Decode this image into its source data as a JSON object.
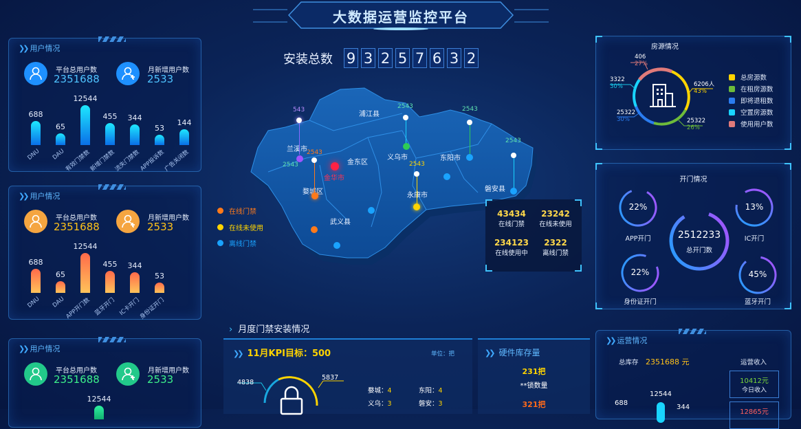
{
  "header": {
    "title": "大数据运营监控平台",
    "install_label": "安装总数",
    "install_digits": [
      "9",
      "3",
      "2",
      "5",
      "7",
      "6",
      "3",
      "2"
    ]
  },
  "user_panels": [
    {
      "title": "用户情况",
      "total_label": "平台总用户数",
      "total_value": "2351688",
      "new_label": "月新增用户数",
      "new_value": "2533",
      "accent": "#1e90ff",
      "value_color": "#4fc3ff",
      "bars": [
        {
          "label": "DNU",
          "value": 688
        },
        {
          "label": "DAU",
          "value": 65
        },
        {
          "label": "有效门禁数",
          "value": 12544
        },
        {
          "label": "新增门禁数",
          "value": 455
        },
        {
          "label": "流失门禁数",
          "value": 344
        },
        {
          "label": "APP投诉数",
          "value": 53
        },
        {
          "label": "广告关闭数",
          "value": 144
        }
      ]
    },
    {
      "title": "用户情况",
      "total_label": "平台总用户数",
      "total_value": "2351688",
      "new_label": "月新增用户数",
      "new_value": "2533",
      "accent": "#f5a540",
      "value_color": "#ffc21a",
      "bars": [
        {
          "label": "DNU",
          "value": 688
        },
        {
          "label": "DAU",
          "value": 65
        },
        {
          "label": "APP开门数",
          "value": 12544
        },
        {
          "label": "蓝牙开门",
          "value": 455
        },
        {
          "label": "IC卡开门",
          "value": 344
        },
        {
          "label": "身份证开门",
          "value": 53
        }
      ]
    },
    {
      "title": "用户情况",
      "total_label": "平台总用户数",
      "total_value": "2351688",
      "new_label": "月新增用户数",
      "new_value": "2533",
      "accent": "#22c98a",
      "value_color": "#3cf08a",
      "bars": [
        {
          "label": "",
          "value": 12544
        }
      ]
    }
  ],
  "map": {
    "regions": [
      "浦江县",
      "兰溪市",
      "金东区",
      "金华市",
      "婺城区",
      "义乌市",
      "东阳市",
      "永康市",
      "武义县",
      "磐安县"
    ],
    "pins": [
      {
        "value": "543",
        "color": "#b98cff"
      },
      {
        "value": "2543",
        "color": "#ff7a1a"
      },
      {
        "value": "2543",
        "color": "#5fe3b0"
      },
      {
        "value": "2543",
        "color": "#5fe3b0"
      },
      {
        "value": "2543",
        "color": "#5fe3b0"
      },
      {
        "value": "2543",
        "color": "#ffd400"
      },
      {
        "value": "2543",
        "color": "#5fe3b0"
      }
    ],
    "legend": [
      {
        "label": "在线门禁",
        "color": "#ff7a1a"
      },
      {
        "label": "在线未使用",
        "color": "#ffd400"
      },
      {
        "label": "离线门禁",
        "color": "#1aa3ff"
      }
    ],
    "stats": [
      {
        "value": "43434",
        "label": "在线门禁"
      },
      {
        "value": "23242",
        "label": "在线未使用"
      },
      {
        "value": "234123",
        "label": "在线使用中"
      },
      {
        "value": "2322",
        "label": "离线门禁"
      }
    ]
  },
  "housing": {
    "title": "房源情况",
    "callouts": [
      {
        "value": "406",
        "pct": "27%",
        "color": "#e07a7a"
      },
      {
        "value": "3322",
        "pct": "30%",
        "color": "#19c6e6"
      },
      {
        "value": "25322",
        "pct": "30%",
        "color": "#2a7cf0"
      },
      {
        "value": "6206人",
        "pct": "43%",
        "color": "#ffd400"
      },
      {
        "value": "25322",
        "pct": "26%",
        "color": "#6dbb3a"
      }
    ],
    "legend": [
      {
        "label": "总房源数",
        "color": "#ffd400"
      },
      {
        "label": "在租房源数",
        "color": "#6dbb3a"
      },
      {
        "label": "即将退租数",
        "color": "#2a7cf0"
      },
      {
        "label": "空置房源数",
        "color": "#19d4ff"
      },
      {
        "label": "使用用户数",
        "color": "#e07a7a"
      }
    ]
  },
  "door": {
    "title": "开门情况",
    "total_value": "2512233",
    "total_label": "总开门数",
    "rings": [
      {
        "pct": "22%",
        "label": "APP开门",
        "fraction": 0.22
      },
      {
        "pct": "13%",
        "label": "IC开门",
        "fraction": 0.13
      },
      {
        "pct": "22%",
        "label": "身份证开门",
        "fraction": 0.22
      },
      {
        "pct": "45%",
        "label": "蓝牙开门",
        "fraction": 0.45
      }
    ]
  },
  "monthly": {
    "title": "月度门禁安装情况",
    "kpi_title": "11月KPI目标：500",
    "unit": "单位：把",
    "left_value": "4838",
    "right_value": "5837",
    "cities": [
      {
        "name": "婺城：",
        "value": "4"
      },
      {
        "name": "东阳：",
        "value": "4"
      },
      {
        "name": "义乌：",
        "value": "3"
      },
      {
        "name": "磐安：",
        "value": "3"
      }
    ]
  },
  "hardware": {
    "title": "硬件库存量",
    "v1": "231把",
    "l1": "**锁数量",
    "v2": "321把"
  },
  "ops": {
    "title": "运营情况",
    "stock_label": "总库存",
    "stock_value": "2351688 元",
    "income_label": "运营收入",
    "today_value": "10412元",
    "today_label": "今日收入",
    "second_value": "12865元",
    "chart_values": [
      "688",
      "12544",
      "344"
    ]
  }
}
